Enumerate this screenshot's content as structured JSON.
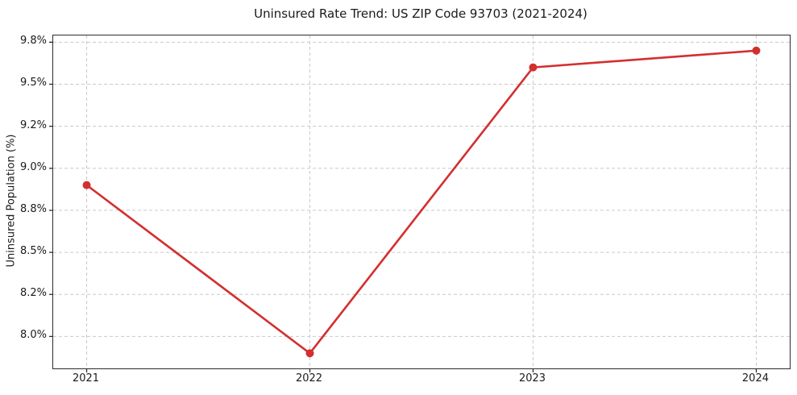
{
  "chart_data": {
    "type": "line",
    "title": "Uninsured Rate Trend: US ZIP Code 93703 (2021-2024)",
    "xlabel": "",
    "ylabel": "Uninsured Population (%)",
    "x": [
      2021,
      2022,
      2023,
      2024
    ],
    "values": [
      8.9,
      7.9,
      9.6,
      9.7
    ],
    "value_unit": "%",
    "xlim": [
      2020.85,
      2024.15
    ],
    "ylim": [
      7.81,
      9.79
    ],
    "x_ticks": [
      {
        "value": 2021,
        "label": "2021"
      },
      {
        "value": 2022,
        "label": "2022"
      },
      {
        "value": 2023,
        "label": "2023"
      },
      {
        "value": 2024,
        "label": "2024"
      }
    ],
    "y_ticks": [
      {
        "value": 8.0,
        "label": "8.0%"
      },
      {
        "value": 8.25,
        "label": "8.2%"
      },
      {
        "value": 8.5,
        "label": "8.5%"
      },
      {
        "value": 8.75,
        "label": "8.8%"
      },
      {
        "value": 9.0,
        "label": "9.0%"
      },
      {
        "value": 9.25,
        "label": "9.2%"
      },
      {
        "value": 9.5,
        "label": "9.5%"
      },
      {
        "value": 9.75,
        "label": "9.8%"
      }
    ],
    "grid": true,
    "grid_style": "dashed",
    "legend_position": "none",
    "marker": "circle",
    "colors": {
      "line": "#d32f2f",
      "marker": "#d32f2f",
      "grid": "#c9c9c9",
      "axis": "#2b2b2b",
      "text": "#1a1a1a",
      "background": "#ffffff"
    }
  }
}
